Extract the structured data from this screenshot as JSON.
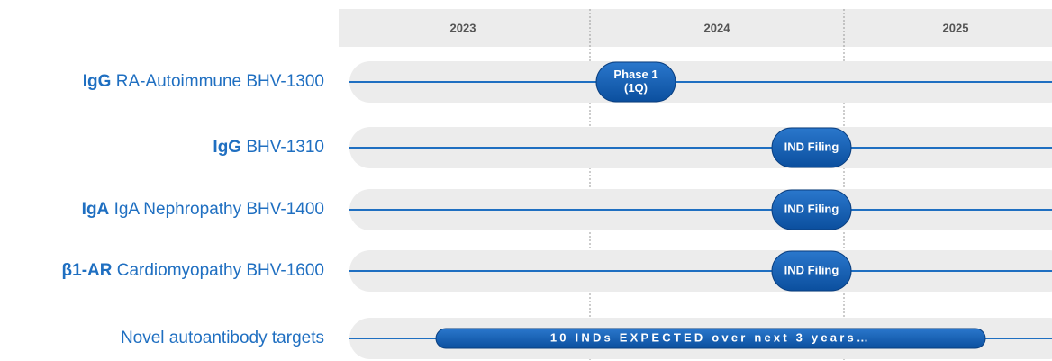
{
  "header": {
    "years": [
      "2023",
      "2024",
      "2025"
    ]
  },
  "rows": [
    {
      "prefix": "IgG",
      "label": "RA-Autoimmune BHV-1300",
      "milestone": [
        "Phase 1",
        "(1Q)"
      ]
    },
    {
      "prefix": "IgG",
      "label": "BHV-1310",
      "milestone": [
        "IND Filing"
      ]
    },
    {
      "prefix": "IgA",
      "label": "IgA Nephropathy BHV-1400",
      "milestone": [
        "IND Filing"
      ]
    },
    {
      "prefix": "β1-AR",
      "label": "Cardiomyopathy BHV-1600",
      "milestone": [
        "IND Filing"
      ]
    },
    {
      "label": "Novel autoantibody targets",
      "milestone": [
        "10 INDs EXPECTED over next 3 years…"
      ]
    }
  ]
}
